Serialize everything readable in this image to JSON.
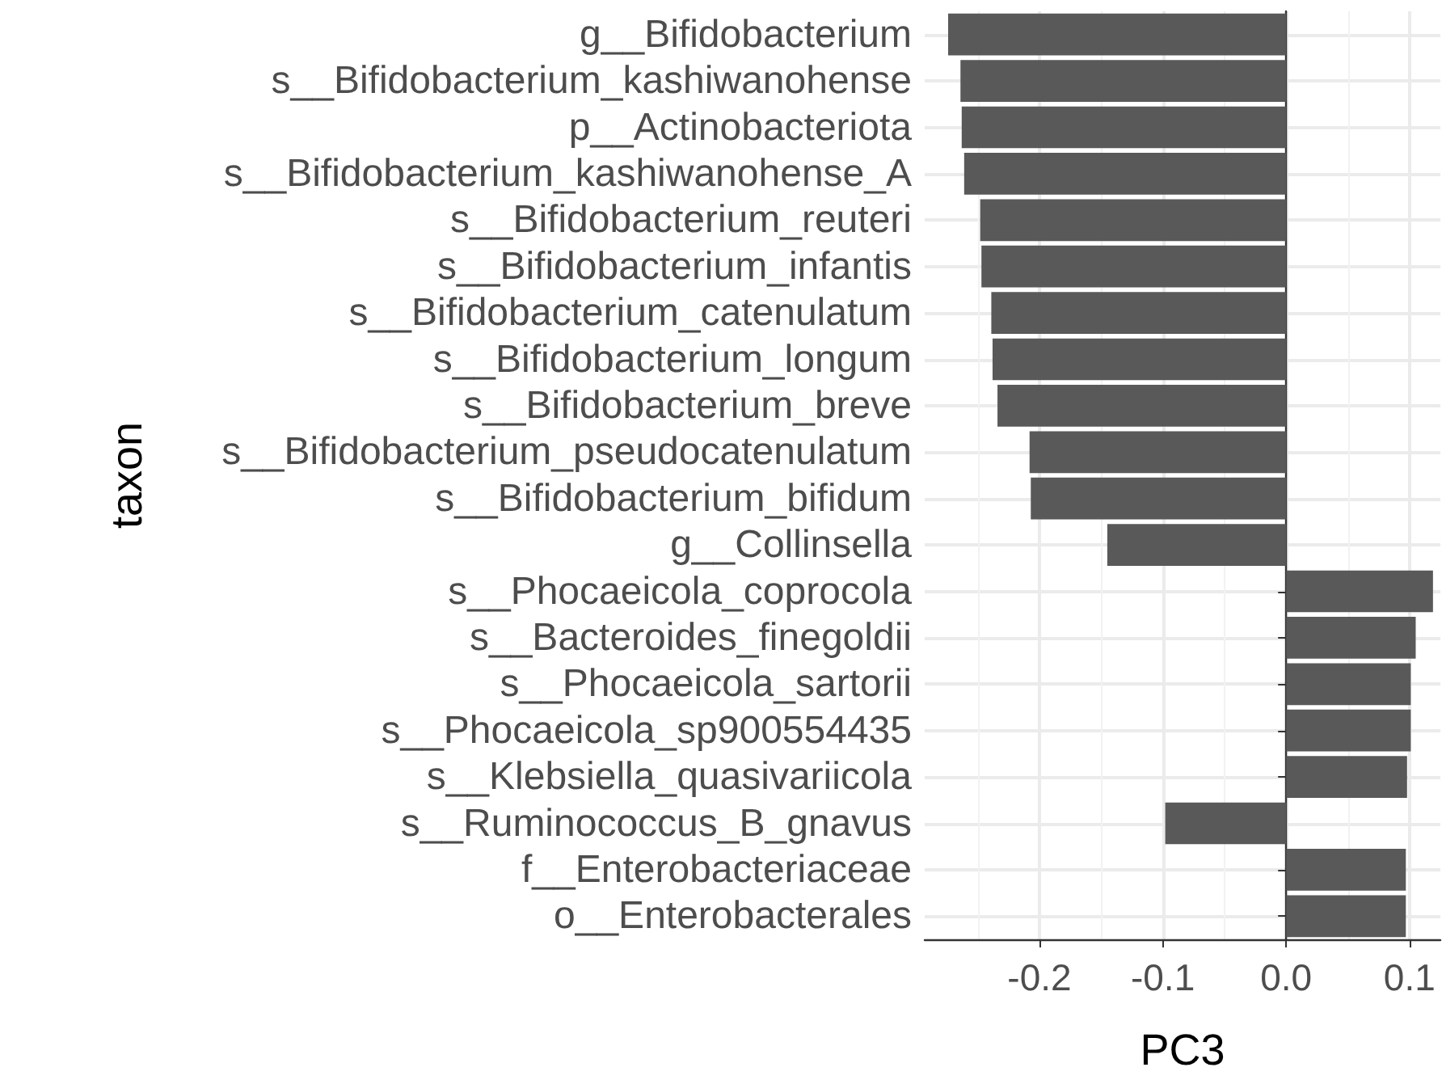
{
  "chart_data": {
    "type": "bar",
    "orientation": "horizontal",
    "xlabel": "PC3",
    "ylabel": "taxon",
    "categories": [
      "g__Bifidobacterium",
      "s__Bifidobacterium_kashiwanohense",
      "p__Actinobacteriota",
      "s__Bifidobacterium_kashiwanohense_A",
      "s__Bifidobacterium_reuteri",
      "s__Bifidobacterium_infantis",
      "s__Bifidobacterium_catenulatum",
      "s__Bifidobacterium_longum",
      "s__Bifidobacterium_breve",
      "s__Bifidobacterium_pseudocatenulatum",
      "s__Bifidobacterium_bifidum",
      "g__Collinsella",
      "s__Phocaeicola_coprocola",
      "s__Bacteroides_finegoldii",
      "s__Phocaeicola_sartorii",
      "s__Phocaeicola_sp900554435",
      "s__Klebsiella_quasivariicola",
      "s__Ruminococcus_B_gnavus",
      "f__Enterobacteriaceae",
      "o__Enterobacterales"
    ],
    "values": [
      -0.274,
      -0.264,
      -0.263,
      -0.261,
      -0.248,
      -0.247,
      -0.239,
      -0.238,
      -0.234,
      -0.208,
      -0.207,
      -0.145,
      0.119,
      0.105,
      0.101,
      0.101,
      0.098,
      -0.098,
      0.097,
      0.097
    ],
    "color": "#595959",
    "xlim": [
      -0.293,
      0.125
    ],
    "xticks": [
      {
        "value": -0.2,
        "label": "-0.2"
      },
      {
        "value": -0.1,
        "label": "-0.1"
      },
      {
        "value": 0,
        "label": "0.0"
      },
      {
        "value": 0.1,
        "label": "0.1"
      }
    ],
    "grid": true
  }
}
